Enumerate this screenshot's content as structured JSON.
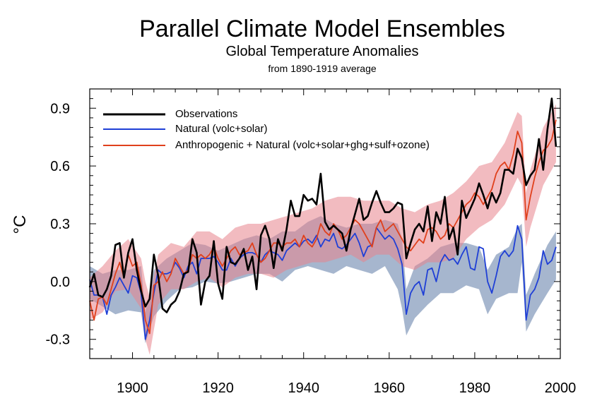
{
  "chart_data": {
    "type": "line",
    "title": "Parallel Climate Model Ensembles",
    "subtitle": "Global Temperature Anomalies",
    "note": "from 1890-1919 average",
    "xlabel": "",
    "ylabel": "°C",
    "xlim": [
      1890,
      2000
    ],
    "ylim": [
      -0.4,
      1.0
    ],
    "xticks": [
      1900,
      1920,
      1940,
      1960,
      1980,
      2000
    ],
    "yticks": [
      -0.3,
      0.0,
      0.3,
      0.6,
      0.9
    ],
    "ytick_labels": [
      "-0.3",
      "0.0",
      "0.3",
      "0.6",
      "0.9"
    ],
    "legend_position": "top-left",
    "series": [
      {
        "name": "Observations",
        "color": "#000000",
        "x": [
          1890,
          1891,
          1892,
          1893,
          1894,
          1895,
          1896,
          1897,
          1898,
          1899,
          1900,
          1901,
          1902,
          1903,
          1904,
          1905,
          1906,
          1907,
          1908,
          1909,
          1910,
          1911,
          1912,
          1913,
          1914,
          1915,
          1916,
          1917,
          1918,
          1919,
          1920,
          1921,
          1922,
          1923,
          1924,
          1925,
          1926,
          1927,
          1928,
          1929,
          1930,
          1931,
          1932,
          1933,
          1934,
          1935,
          1936,
          1937,
          1938,
          1939,
          1940,
          1941,
          1942,
          1943,
          1944,
          1945,
          1946,
          1947,
          1948,
          1949,
          1950,
          1951,
          1952,
          1953,
          1954,
          1955,
          1956,
          1957,
          1958,
          1959,
          1960,
          1961,
          1962,
          1963,
          1964,
          1965,
          1966,
          1967,
          1968,
          1969,
          1970,
          1971,
          1972,
          1973,
          1974,
          1975,
          1976,
          1977,
          1978,
          1979,
          1980,
          1981,
          1982,
          1983,
          1984,
          1985,
          1986,
          1987,
          1988,
          1989,
          1990,
          1991,
          1992,
          1993,
          1994,
          1995,
          1996,
          1997,
          1998,
          1999
        ],
        "y": [
          -0.03,
          0.04,
          -0.07,
          -0.08,
          -0.04,
          0.03,
          0.19,
          0.2,
          0.02,
          0.15,
          0.22,
          0.06,
          -0.05,
          -0.13,
          -0.09,
          0.14,
          0.03,
          -0.14,
          -0.16,
          -0.12,
          -0.1,
          -0.05,
          0.04,
          0.05,
          0.22,
          0.15,
          -0.12,
          0.0,
          0.03,
          0.21,
          -0.01,
          -0.09,
          0.18,
          0.1,
          0.09,
          0.12,
          0.17,
          0.06,
          0.13,
          -0.04,
          0.24,
          0.29,
          0.22,
          0.07,
          0.22,
          0.16,
          0.27,
          0.42,
          0.34,
          0.34,
          0.45,
          0.42,
          0.43,
          0.4,
          0.56,
          0.31,
          0.27,
          0.29,
          0.27,
          0.25,
          0.16,
          0.27,
          0.35,
          0.43,
          0.32,
          0.34,
          0.41,
          0.47,
          0.41,
          0.36,
          0.36,
          0.38,
          0.41,
          0.4,
          0.12,
          0.2,
          0.27,
          0.3,
          0.26,
          0.39,
          0.21,
          0.36,
          0.3,
          0.44,
          0.22,
          0.28,
          0.14,
          0.42,
          0.33,
          0.38,
          0.43,
          0.51,
          0.45,
          0.38,
          0.46,
          0.41,
          0.46,
          0.58,
          0.58,
          0.56,
          0.69,
          0.64,
          0.5,
          0.55,
          0.58,
          0.74,
          0.58,
          0.79,
          0.95,
          0.7
        ]
      },
      {
        "name": "Natural (volc+solar)",
        "color": "#1f3fd6",
        "x": [
          1890,
          1891,
          1892,
          1893,
          1894,
          1895,
          1896,
          1897,
          1898,
          1899,
          1900,
          1901,
          1902,
          1903,
          1904,
          1905,
          1906,
          1907,
          1908,
          1909,
          1910,
          1911,
          1912,
          1913,
          1914,
          1915,
          1916,
          1917,
          1918,
          1919,
          1920,
          1921,
          1922,
          1923,
          1924,
          1925,
          1926,
          1927,
          1928,
          1929,
          1930,
          1931,
          1932,
          1933,
          1934,
          1935,
          1936,
          1937,
          1938,
          1939,
          1940,
          1941,
          1942,
          1943,
          1944,
          1945,
          1946,
          1947,
          1948,
          1949,
          1950,
          1951,
          1952,
          1953,
          1954,
          1955,
          1956,
          1957,
          1958,
          1959,
          1960,
          1961,
          1962,
          1963,
          1964,
          1965,
          1966,
          1967,
          1968,
          1969,
          1970,
          1971,
          1972,
          1973,
          1974,
          1975,
          1976,
          1977,
          1978,
          1979,
          1980,
          1981,
          1982,
          1983,
          1984,
          1985,
          1986,
          1987,
          1988,
          1989,
          1990,
          1991,
          1992,
          1993,
          1994,
          1995,
          1996,
          1997,
          1998,
          1999
        ],
        "y": [
          0.01,
          -0.07,
          -0.07,
          -0.08,
          -0.17,
          -0.07,
          -0.03,
          0.02,
          -0.02,
          -0.06,
          0.03,
          0.02,
          -0.06,
          -0.3,
          -0.2,
          -0.06,
          0.06,
          0.04,
          0.04,
          0.05,
          0.1,
          0.07,
          0.02,
          0.08,
          0.1,
          0.04,
          0.12,
          0.12,
          0.12,
          0.13,
          0.1,
          0.06,
          0.06,
          0.12,
          0.08,
          0.12,
          0.14,
          0.15,
          0.15,
          0.14,
          0.1,
          0.14,
          0.16,
          0.15,
          0.14,
          0.11,
          0.16,
          0.18,
          0.2,
          0.18,
          0.21,
          0.22,
          0.2,
          0.24,
          0.18,
          0.22,
          0.21,
          0.25,
          0.18,
          0.17,
          0.19,
          0.22,
          0.25,
          0.2,
          0.13,
          0.18,
          0.19,
          0.28,
          0.25,
          0.22,
          0.24,
          0.22,
          0.17,
          0.09,
          -0.17,
          -0.06,
          -0.02,
          0.0,
          -0.07,
          0.06,
          0.07,
          0.0,
          0.1,
          0.14,
          0.11,
          0.12,
          0.09,
          0.14,
          0.18,
          0.07,
          0.06,
          0.18,
          0.17,
          0.0,
          -0.06,
          0.03,
          0.13,
          0.16,
          0.13,
          0.16,
          0.29,
          0.22,
          -0.2,
          -0.07,
          -0.04,
          0.02,
          0.16,
          0.09,
          0.11,
          0.18
        ]
      },
      {
        "name": "Anthropogenic + Natural (volc+solar+ghg+sulf+ozone)",
        "color": "#e0401c",
        "x": [
          1890,
          1891,
          1892,
          1893,
          1894,
          1895,
          1896,
          1897,
          1898,
          1899,
          1900,
          1901,
          1902,
          1903,
          1904,
          1905,
          1906,
          1907,
          1908,
          1909,
          1910,
          1911,
          1912,
          1913,
          1914,
          1915,
          1916,
          1917,
          1918,
          1919,
          1920,
          1921,
          1922,
          1923,
          1924,
          1925,
          1926,
          1927,
          1928,
          1929,
          1930,
          1931,
          1932,
          1933,
          1934,
          1935,
          1936,
          1937,
          1938,
          1939,
          1940,
          1941,
          1942,
          1943,
          1944,
          1945,
          1946,
          1947,
          1948,
          1949,
          1950,
          1951,
          1952,
          1953,
          1954,
          1955,
          1956,
          1957,
          1958,
          1959,
          1960,
          1961,
          1962,
          1963,
          1964,
          1965,
          1966,
          1967,
          1968,
          1969,
          1970,
          1971,
          1972,
          1973,
          1974,
          1975,
          1976,
          1977,
          1978,
          1979,
          1980,
          1981,
          1982,
          1983,
          1984,
          1985,
          1986,
          1987,
          1988,
          1989,
          1990,
          1991,
          1992,
          1993,
          1994,
          1995,
          1996,
          1997,
          1998,
          1999
        ],
        "y": [
          -0.1,
          -0.2,
          -0.09,
          -0.08,
          -0.12,
          -0.04,
          0.04,
          0.1,
          0.02,
          0.14,
          0.08,
          0.1,
          -0.02,
          -0.2,
          -0.27,
          -0.02,
          0.0,
          0.05,
          0.0,
          0.04,
          0.12,
          0.08,
          0.04,
          0.06,
          0.14,
          0.12,
          0.14,
          0.12,
          0.14,
          0.18,
          0.12,
          0.08,
          0.12,
          0.16,
          0.18,
          0.14,
          0.15,
          0.16,
          0.2,
          0.14,
          0.1,
          0.12,
          0.16,
          0.2,
          0.2,
          0.18,
          0.2,
          0.2,
          0.22,
          0.18,
          0.24,
          0.2,
          0.18,
          0.22,
          0.3,
          0.26,
          0.24,
          0.3,
          0.27,
          0.22,
          0.24,
          0.28,
          0.32,
          0.3,
          0.26,
          0.22,
          0.18,
          0.28,
          0.32,
          0.26,
          0.28,
          0.3,
          0.26,
          0.22,
          0.18,
          0.16,
          0.19,
          0.22,
          0.2,
          0.27,
          0.28,
          0.26,
          0.22,
          0.24,
          0.3,
          0.28,
          0.32,
          0.36,
          0.4,
          0.42,
          0.46,
          0.44,
          0.4,
          0.44,
          0.48,
          0.56,
          0.6,
          0.62,
          0.58,
          0.66,
          0.78,
          0.72,
          0.32,
          0.44,
          0.54,
          0.62,
          0.68,
          0.7,
          0.74,
          0.84
        ]
      }
    ],
    "bands": [
      {
        "series": "Natural (volc+solar)",
        "color": "#5c7aa6",
        "opacity": 0.55,
        "x": [
          1890,
          1893,
          1896,
          1899,
          1902,
          1903,
          1905,
          1908,
          1911,
          1914,
          1917,
          1920,
          1923,
          1926,
          1929,
          1932,
          1935,
          1938,
          1941,
          1944,
          1947,
          1950,
          1953,
          1956,
          1959,
          1962,
          1963,
          1964,
          1966,
          1969,
          1972,
          1975,
          1978,
          1981,
          1983,
          1985,
          1988,
          1990,
          1991,
          1992,
          1994,
          1997,
          1999
        ],
        "lower": [
          -0.09,
          -0.13,
          -0.17,
          -0.15,
          -0.16,
          -0.32,
          -0.18,
          -0.1,
          -0.04,
          -0.03,
          0.0,
          -0.01,
          0.0,
          0.02,
          0.04,
          0.04,
          0.0,
          0.06,
          0.08,
          0.06,
          0.04,
          0.08,
          0.06,
          0.04,
          0.08,
          -0.04,
          -0.14,
          -0.28,
          -0.19,
          -0.12,
          -0.06,
          -0.06,
          -0.02,
          -0.04,
          -0.17,
          -0.09,
          -0.06,
          -0.06,
          0.1,
          -0.26,
          -0.17,
          -0.06,
          0.01
        ],
        "upper": [
          0.08,
          0.04,
          0.06,
          0.06,
          0.08,
          -0.16,
          0.06,
          0.12,
          0.16,
          0.2,
          0.19,
          0.16,
          0.19,
          0.22,
          0.24,
          0.22,
          0.26,
          0.26,
          0.31,
          0.34,
          0.3,
          0.28,
          0.3,
          0.3,
          0.32,
          0.3,
          0.22,
          -0.04,
          0.08,
          0.12,
          0.18,
          0.2,
          0.2,
          0.18,
          0.06,
          0.14,
          0.18,
          0.28,
          0.3,
          -0.07,
          0.04,
          0.19,
          0.26
        ]
      },
      {
        "series": "Anthropogenic + Natural (volc+solar+ghg+sulf+ozone)",
        "color": "#e8848c",
        "opacity": 0.55,
        "x": [
          1890,
          1893,
          1896,
          1899,
          1902,
          1903,
          1904,
          1906,
          1909,
          1912,
          1915,
          1918,
          1921,
          1924,
          1927,
          1930,
          1933,
          1936,
          1939,
          1942,
          1945,
          1948,
          1951,
          1954,
          1957,
          1960,
          1963,
          1966,
          1969,
          1972,
          1975,
          1978,
          1981,
          1984,
          1987,
          1990,
          1991,
          1992,
          1993,
          1996,
          1999
        ],
        "lower": [
          -0.2,
          -0.16,
          -0.05,
          -0.04,
          -0.14,
          -0.3,
          -0.38,
          -0.12,
          -0.04,
          -0.04,
          0.0,
          0.02,
          -0.03,
          0.02,
          0.04,
          0.04,
          0.02,
          0.06,
          0.08,
          0.1,
          0.1,
          0.12,
          0.14,
          0.1,
          0.14,
          0.14,
          0.08,
          0.06,
          0.1,
          0.1,
          0.12,
          0.22,
          0.28,
          0.32,
          0.4,
          0.54,
          0.5,
          0.18,
          0.28,
          0.5,
          0.62
        ],
        "upper": [
          0.02,
          0.08,
          0.16,
          0.22,
          0.12,
          0.0,
          -0.08,
          0.14,
          0.2,
          0.18,
          0.26,
          0.26,
          0.22,
          0.28,
          0.3,
          0.3,
          0.32,
          0.34,
          0.36,
          0.38,
          0.42,
          0.44,
          0.44,
          0.42,
          0.42,
          0.42,
          0.38,
          0.36,
          0.4,
          0.42,
          0.46,
          0.52,
          0.6,
          0.62,
          0.72,
          0.88,
          0.86,
          0.46,
          0.58,
          0.8,
          0.92
        ]
      }
    ]
  }
}
